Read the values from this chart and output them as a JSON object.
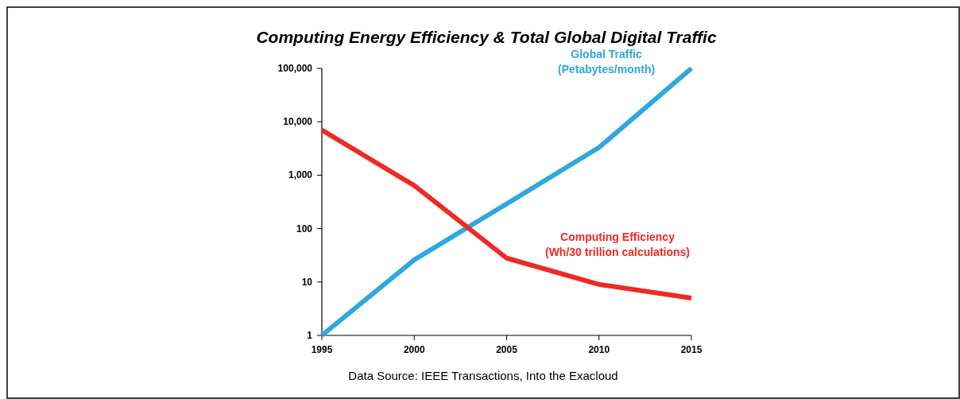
{
  "chart_data": {
    "type": "line",
    "title": "Computing Energy Efficiency & Total Global Digital Traffic",
    "x": [
      1995,
      2000,
      2005,
      2010,
      2015
    ],
    "series": [
      {
        "name": "Global Traffic\n(Petabytes/month)",
        "color": "#2ea8df",
        "values": [
          1,
          26,
          290,
          3300,
          100000
        ]
      },
      {
        "name": "Computing Efficiency\n(Wh/30 trillion calculations)",
        "color": "#ee2a24",
        "values": [
          7000,
          640,
          28,
          9,
          5
        ]
      }
    ],
    "log": "y",
    "xlim": [
      1995,
      2015
    ],
    "xticks": [
      1995,
      2000,
      2005,
      2010,
      2015
    ],
    "ylim": [
      1,
      100000
    ],
    "yticks": [
      {
        "value": 1,
        "label": "1"
      },
      {
        "value": 10,
        "label": "10"
      },
      {
        "value": 100,
        "label": "100"
      },
      {
        "value": 1000,
        "label": "1,000"
      },
      {
        "value": 10000,
        "label": "10,000"
      },
      {
        "value": 100000,
        "label": "100,000"
      }
    ],
    "grid": false,
    "marker": "none",
    "line_style": "solid",
    "annotations": [
      "Data Source: IEEE Transactions, Into the Exacloud"
    ]
  }
}
